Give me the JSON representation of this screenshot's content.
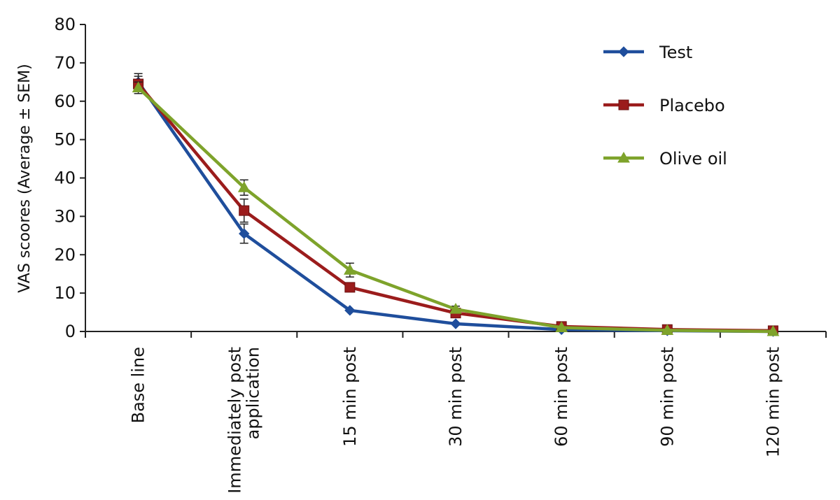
{
  "chart_data": {
    "type": "line",
    "ylabel": "VAS scoores (Average ± SEM)",
    "ylim": [
      0,
      80
    ],
    "y_ticks": [
      0,
      10,
      20,
      30,
      40,
      50,
      60,
      70,
      80
    ],
    "grid": false,
    "legend_position": "top-right",
    "categories": [
      [
        "Base line"
      ],
      [
        "Immediately post",
        "application"
      ],
      [
        "15 min post"
      ],
      [
        "30 min post"
      ],
      [
        "60 min post"
      ],
      [
        "90 min post"
      ],
      [
        "120 min post"
      ]
    ],
    "series": [
      {
        "name": "Test",
        "color": "#1f4e9c",
        "marker": "diamond",
        "values": [
          65,
          25.5,
          5.5,
          2,
          0.5,
          0.2,
          0
        ],
        "errors": [
          2.2,
          2.5,
          0,
          0,
          0,
          0,
          0
        ]
      },
      {
        "name": "Placebo",
        "color": "#9b1c1c",
        "marker": "square",
        "values": [
          64.5,
          31.5,
          11.5,
          4.8,
          1.3,
          0.5,
          0.2
        ],
        "errors": [
          2,
          3,
          0,
          0,
          0,
          0,
          0
        ]
      },
      {
        "name": "Olive oil",
        "color": "#7ea32b",
        "marker": "triangle",
        "values": [
          63.5,
          37.5,
          16,
          5.8,
          1,
          0.3,
          0
        ],
        "errors": [
          1.5,
          2,
          1.8,
          0.8,
          0,
          0,
          0
        ]
      }
    ]
  }
}
